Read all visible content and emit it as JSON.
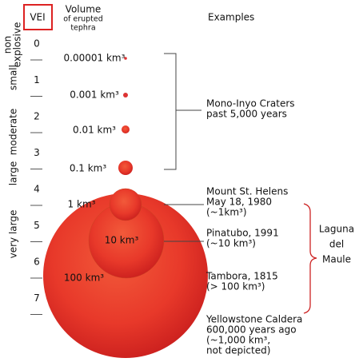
{
  "header": {
    "scale": "VEI",
    "volume": [
      "Volume",
      "of erupted",
      "tephra"
    ],
    "examples": "Examples"
  },
  "vei": [
    0,
    1,
    2,
    3,
    4,
    5,
    6,
    7
  ],
  "categories": {
    "non": [
      "non",
      "explosive"
    ],
    "small": "small",
    "moderate": "moderate",
    "large": "large",
    "very_large": "very large"
  },
  "volumes": [
    "0.00001 km³",
    "0.001 km³",
    "0.01 km³",
    "0.1 km³",
    "1 km³",
    "10 km³",
    "100 km³"
  ],
  "examples": {
    "mono": [
      "Mono-Inyo Craters",
      "past 5,000 years"
    ],
    "helens": [
      "Mount St. Helens",
      "May 18, 1980",
      "(~1km³)"
    ],
    "pinatubo": [
      "Pinatubo, 1991",
      "(~10 km³)"
    ],
    "tambora": [
      "Tambora, 1815",
      "(> 100 km³)"
    ],
    "yellowstone": [
      "Yellowstone Caldera",
      "600,000 years ago",
      "(~1,000 km³,",
      "not depicted)"
    ]
  },
  "laguna": [
    "Laguna",
    "del",
    "Maule"
  ]
}
